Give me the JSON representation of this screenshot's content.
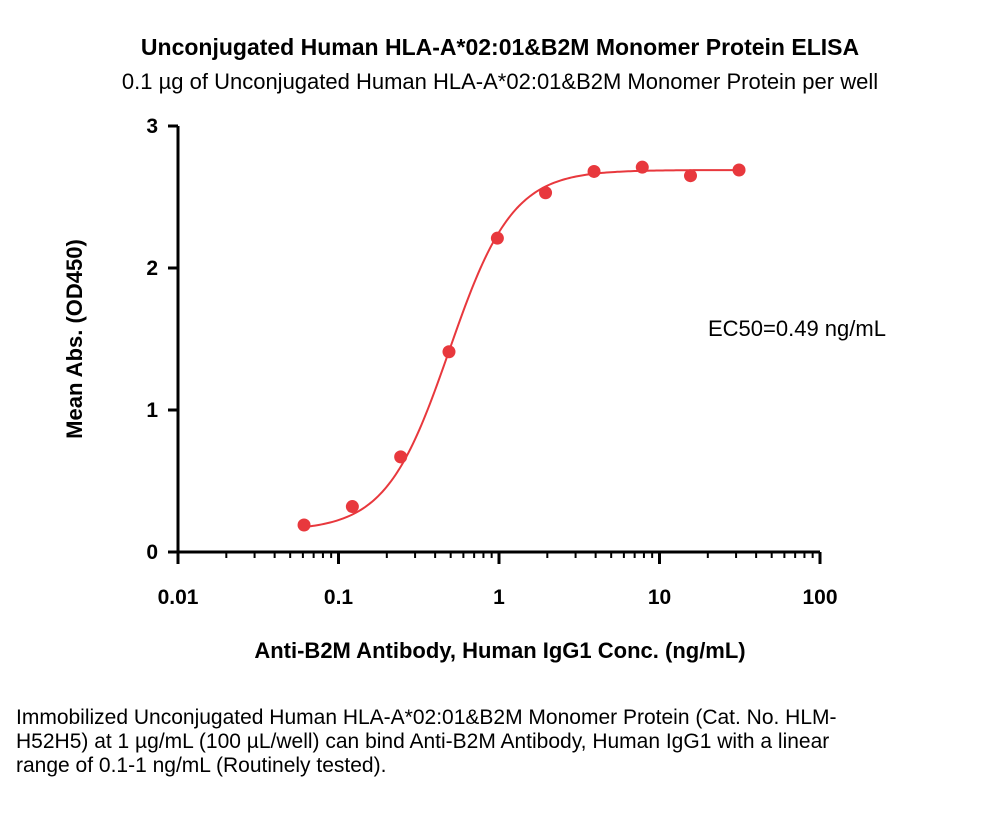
{
  "chart_data": {
    "type": "scatter",
    "title": "Unconjugated Human HLA-A*02:01&B2M Monomer Protein ELISA",
    "subtitle": "0.1 µg of Unconjugated Human HLA-A*02:01&B2M Monomer Protein per well",
    "xlabel": "Anti-B2M Antibody, Human IgG1  Conc. (ng/mL)",
    "ylabel": "Mean Abs. (OD450)",
    "x_scale": "log",
    "xlim": [
      0.01,
      100
    ],
    "ylim": [
      0,
      3
    ],
    "x_ticks": [
      "0.01",
      "0.1",
      "1",
      "10",
      "100"
    ],
    "y_ticks": [
      "0",
      "1",
      "2",
      "3"
    ],
    "grid": false,
    "legend": "none",
    "series": [
      {
        "color": "#e8383d",
        "x": [
          0.061,
          0.122,
          0.244,
          0.488,
          0.977,
          1.95,
          3.91,
          7.81,
          15.6,
          31.3
        ],
        "y": [
          0.19,
          0.32,
          0.67,
          1.41,
          2.21,
          2.53,
          2.68,
          2.71,
          2.65,
          2.69
        ]
      }
    ],
    "fit_curve": {
      "type": "4PL",
      "bottom": 0.15,
      "top": 2.69,
      "ec50": 0.49,
      "hill": 2.2
    },
    "annotation": "EC50=0.49 ng/mL"
  },
  "caption": "Immobilized Unconjugated Human HLA-A*02:01&B2M Monomer Protein (Cat. No. HLM-H52H5) at 1 µg/mL (100 µL/well) can bind Anti-B2M Antibody, Human IgG1 with a linear range of 0.1-1 ng/mL (Routinely tested)."
}
